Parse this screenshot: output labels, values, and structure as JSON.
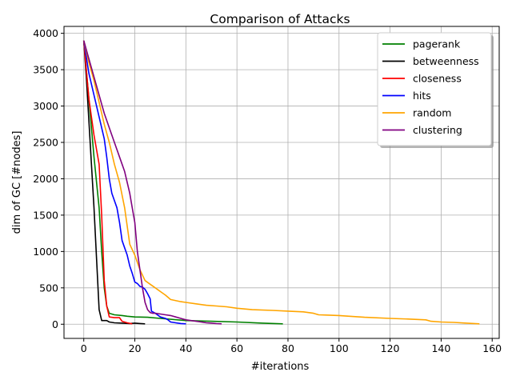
{
  "chart_data": {
    "type": "line",
    "title": "Comparison of Attacks",
    "xlabel": "#iterations",
    "ylabel": "dim of GC [#nodes]",
    "xlim": [
      -7.75,
      162.75
    ],
    "ylim": [
      -195,
      4095
    ],
    "xticks": [
      0,
      20,
      40,
      60,
      80,
      100,
      120,
      140,
      160
    ],
    "yticks": [
      0,
      500,
      1000,
      1500,
      2000,
      2500,
      3000,
      3500,
      4000
    ],
    "grid": true,
    "legend_position": "top-right",
    "series": [
      {
        "name": "pagerank",
        "color": "#008000",
        "x": [
          0,
          2,
          4,
          6,
          7,
          8,
          9,
          10,
          12,
          15,
          17,
          20,
          25,
          30,
          40,
          50,
          60,
          70,
          78
        ],
        "y": [
          3900,
          3100,
          2300,
          1600,
          1000,
          500,
          250,
          150,
          130,
          120,
          110,
          100,
          95,
          80,
          50,
          40,
          30,
          15,
          5
        ]
      },
      {
        "name": "betweenness",
        "color": "#000000",
        "x": [
          0,
          1,
          2,
          3,
          4,
          5,
          6,
          7,
          9,
          10,
          12,
          15,
          18,
          20,
          22,
          24
        ],
        "y": [
          3900,
          3400,
          2800,
          2200,
          1600,
          900,
          200,
          50,
          50,
          30,
          20,
          15,
          10,
          15,
          10,
          5
        ]
      },
      {
        "name": "closeness",
        "color": "#ff0000",
        "x": [
          0,
          2,
          4,
          6,
          7,
          8,
          9,
          10,
          12,
          14,
          15,
          17,
          19
        ],
        "y": [
          3900,
          3100,
          2600,
          2200,
          1500,
          600,
          250,
          100,
          90,
          90,
          40,
          20,
          5
        ]
      },
      {
        "name": "hits",
        "color": "#0000ff",
        "x": [
          0,
          2,
          4,
          6,
          8,
          9,
          10,
          11,
          13,
          14,
          15,
          16,
          17,
          18,
          19,
          20,
          21,
          22,
          23,
          24,
          25,
          26,
          26.5,
          28,
          30,
          32,
          33,
          34,
          36,
          38,
          40
        ],
        "y": [
          3900,
          3450,
          3150,
          2850,
          2550,
          2300,
          2000,
          1800,
          1600,
          1400,
          1150,
          1050,
          950,
          800,
          700,
          580,
          560,
          520,
          510,
          480,
          420,
          350,
          180,
          150,
          100,
          80,
          60,
          30,
          20,
          10,
          5
        ]
      },
      {
        "name": "random",
        "color": "#ffa500",
        "x": [
          0,
          2,
          4,
          6,
          8,
          10,
          12,
          14,
          16,
          18,
          20,
          22,
          24,
          26,
          28,
          30,
          32,
          34,
          38,
          40,
          44,
          48,
          52,
          56,
          60,
          66,
          74,
          80,
          86,
          90,
          92,
          96,
          100,
          104,
          110,
          120,
          128,
          134,
          136,
          140,
          145,
          150,
          155
        ],
        "y": [
          3900,
          3600,
          3350,
          3050,
          2750,
          2500,
          2200,
          1950,
          1600,
          1100,
          950,
          750,
          600,
          550,
          500,
          450,
          400,
          340,
          310,
          300,
          280,
          260,
          250,
          240,
          220,
          200,
          190,
          180,
          170,
          150,
          130,
          125,
          120,
          110,
          95,
          80,
          70,
          60,
          40,
          30,
          25,
          15,
          5
        ]
      },
      {
        "name": "clustering",
        "color": "#800080",
        "x": [
          0,
          2,
          4,
          6,
          8,
          10,
          12,
          14,
          16,
          18,
          19,
          20,
          21,
          22,
          23,
          24,
          25,
          26,
          27,
          28,
          30,
          32,
          34,
          36,
          38,
          40,
          42,
          44,
          46,
          48,
          50,
          52,
          54
        ],
        "y": [
          3900,
          3650,
          3400,
          3150,
          2900,
          2700,
          2500,
          2300,
          2100,
          1800,
          1600,
          1400,
          1000,
          750,
          500,
          300,
          200,
          160,
          150,
          150,
          140,
          130,
          120,
          100,
          80,
          60,
          50,
          40,
          30,
          20,
          15,
          8,
          5
        ]
      }
    ]
  }
}
